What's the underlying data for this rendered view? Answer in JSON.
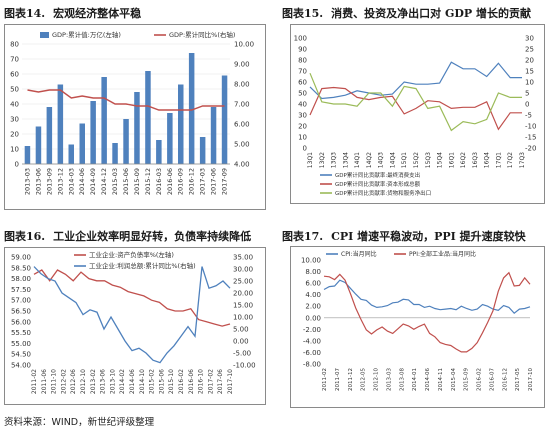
{
  "titles": [
    {
      "fig": "图表14.",
      "text": "宏观经济整体平稳"
    },
    {
      "fig": "图表15.",
      "text": "消费、投资及净出口对 GDP 增长的贡献"
    },
    {
      "fig": "图表16.",
      "text": "工业企业效率明显好转，负债率持续降低"
    },
    {
      "fig": "图表17.",
      "text": "CPI 增速平稳波动，PPI 提升速度较快"
    }
  ],
  "source": "资料来源：WIND，新世纪评级整理",
  "colors": {
    "bar": "#4f81bd",
    "red": "#c0504d",
    "blue": "#4f81bd",
    "olive": "#9bbb59",
    "frame": "#8a8a8a"
  },
  "chart_data": [
    {
      "type": "bar",
      "legend": [
        "GDP:累计值:万亿(左轴)",
        "GDP:累计同比%(右轴)"
      ],
      "x": [
        "2013-03",
        "2013-06",
        "2013-09",
        "2013-12",
        "2014-03",
        "2014-06",
        "2014-09",
        "2014-12",
        "2015-03",
        "2015-06",
        "2015-09",
        "2015-12",
        "2016-03",
        "2016-06",
        "2016-09",
        "2016-12",
        "2017-03",
        "2017-06",
        "2017-09"
      ],
      "x_ticks": [
        "2013-03",
        "2013-06",
        "2013-09",
        "2013-12",
        "2014-03",
        "2014-06",
        "2014-09",
        "2014-12",
        "2015-03",
        "2015-06",
        "2015-09",
        "2015-12",
        "2016-03",
        "2016-06",
        "2016-09",
        "2016-12",
        "2017-03",
        "2017-06",
        "2017-09"
      ],
      "series": [
        {
          "name": "GDP:累计值:万亿(左轴)",
          "type": "bar",
          "axis": "left",
          "values": [
            12,
            25,
            38,
            53,
            13,
            27,
            42,
            58,
            14,
            30,
            48,
            62,
            16,
            34,
            53,
            74,
            18,
            38,
            59
          ]
        },
        {
          "name": "GDP:累计同比%(右轴)",
          "type": "line",
          "axis": "right",
          "values": [
            7.7,
            7.6,
            7.7,
            7.7,
            7.3,
            7.4,
            7.3,
            7.3,
            7.0,
            7.0,
            6.9,
            6.9,
            6.7,
            6.7,
            6.7,
            6.7,
            6.9,
            6.9,
            6.9
          ]
        }
      ],
      "y_left": {
        "ticks": [
          "0",
          "10",
          "20",
          "30",
          "40",
          "50",
          "60",
          "70",
          "80"
        ],
        "lim": [
          0,
          80
        ]
      },
      "y_right": {
        "ticks": [
          "4.00",
          "5.00",
          "6.00",
          "7.00",
          "8.00",
          "9.00",
          "10.00"
        ],
        "lim": [
          4,
          10
        ]
      }
    },
    {
      "type": "line",
      "legend": [
        "GDP累计同比贡献率:最终消费支出",
        "GDP累计同比贡献率:资本形成总额",
        "GDP累计同比贡献率:货物和服务净出口"
      ],
      "x_ticks": [
        "13Q1",
        "13Q2",
        "13Q3",
        "13Q4",
        "14Q1",
        "14Q2",
        "14Q3",
        "14Q4",
        "15Q1",
        "15Q2",
        "15Q3",
        "15Q4",
        "16Q1",
        "16Q2",
        "16Q3",
        "16Q4",
        "17Q1",
        "17Q2",
        "17Q3"
      ],
      "x": [
        "13Q1",
        "13Q2",
        "13Q3",
        "13Q4",
        "14Q1",
        "14Q2",
        "14Q3",
        "14Q4",
        "15Q1",
        "15Q2",
        "15Q3",
        "15Q4",
        "16Q1",
        "16Q2",
        "16Q3",
        "16Q4",
        "17Q1",
        "17Q2",
        "17Q3"
      ],
      "series": [
        {
          "name": "GDP累计同比贡献率:最终消费支出",
          "axis": "left",
          "values": [
            55.5,
            45,
            46,
            48,
            52,
            50,
            48,
            49,
            60,
            58,
            58,
            59,
            78,
            72,
            72,
            65,
            77,
            64,
            64
          ]
        },
        {
          "name": "GDP累计同比贡献率:资本形成总额",
          "axis": "left",
          "values": [
            30,
            54,
            55,
            54,
            46,
            44,
            46,
            47,
            31,
            36,
            43,
            42,
            36,
            37,
            37,
            42,
            17,
            32,
            32
          ]
        },
        {
          "name": "GDP累计同比贡献率:货物和服务净出口",
          "axis": "right",
          "values": [
            14,
            1,
            0,
            0,
            -1,
            5,
            5,
            -1,
            8,
            7,
            -2,
            -1,
            -12,
            -8,
            -9,
            -7,
            5,
            3,
            3
          ]
        }
      ],
      "y_left": {
        "ticks": [
          "0",
          "10",
          "20",
          "30",
          "40",
          "50",
          "60",
          "70",
          "80",
          "90",
          "100"
        ],
        "lim": [
          0,
          100
        ]
      },
      "y_right": {
        "ticks": [
          "-20",
          "-15",
          "-10",
          "-5",
          "0",
          "5",
          "10",
          "15",
          "20",
          "25",
          "30"
        ],
        "lim": [
          -20,
          30
        ]
      }
    },
    {
      "type": "line",
      "legend": [
        "工业企业:资产负债率%(左轴)",
        "工业企业:利润总额:累计同比%(右轴)"
      ],
      "x_ticks": [
        "2011-02",
        "2011-06",
        "2011-10",
        "2012-02",
        "2012-06",
        "2012-10",
        "2013-02",
        "2013-06",
        "2013-10",
        "2014-02",
        "2014-06",
        "2014-10",
        "2015-02",
        "2015-06",
        "2015-10",
        "2016-02",
        "2016-06",
        "2016-10",
        "2017-02",
        "2017-06",
        "2017-10"
      ],
      "series": [
        {
          "name": "工业企业:资产负债率%(左轴)",
          "axis": "left",
          "values": [
            58.2,
            58.4,
            57.9,
            58.4,
            58.2,
            57.9,
            58.3,
            58.0,
            57.9,
            57.9,
            57.7,
            57.6,
            57.4,
            57.3,
            57.2,
            57.0,
            56.9,
            56.6,
            56.5,
            56.5,
            56.6,
            56.1,
            56.0,
            55.9,
            55.8,
            55.9
          ]
        },
        {
          "name": "工业企业:利润总额:累计同比%(右轴)",
          "axis": "right",
          "values": [
            31,
            28,
            26,
            25,
            20,
            18,
            16,
            11,
            13,
            12,
            5,
            10,
            5,
            0,
            -4,
            -3,
            -5,
            -8,
            -9,
            -5,
            -2,
            2,
            6,
            2,
            31,
            22,
            23,
            25,
            22
          ]
        }
      ],
      "y_left": {
        "ticks": [
          "54.00",
          "54.50",
          "55.00",
          "55.50",
          "56.00",
          "56.50",
          "57.00",
          "57.50",
          "58.00",
          "58.50",
          "59.00"
        ],
        "lim": [
          54,
          59
        ]
      },
      "y_right": {
        "ticks": [
          "-10.00",
          "-5.00",
          "0.00",
          "5.00",
          "10.00",
          "15.00",
          "20.00",
          "25.00",
          "30.00",
          "35.00"
        ],
        "lim": [
          -10,
          35
        ]
      }
    },
    {
      "type": "line",
      "legend": [
        "CPI:当月同比",
        "PPI:全部工业品:当月同比"
      ],
      "x_ticks": [
        "2011-02",
        "2011-07",
        "2011-12",
        "2012-05",
        "2012-10",
        "2013-03",
        "2013-08",
        "2014-01",
        "2014-06",
        "2014-11",
        "2015-04",
        "2015-09",
        "2016-02",
        "2016-07",
        "2016-12",
        "2017-05",
        "2017-10"
      ],
      "series": [
        {
          "name": "CPI:当月同比",
          "values": [
            4.9,
            5.4,
            5.5,
            6.5,
            6.1,
            5.1,
            4.1,
            3.2,
            3.0,
            2.2,
            1.8,
            1.9,
            2.1,
            2.6,
            2.7,
            3.2,
            3.1,
            2.3,
            2.3,
            1.8,
            2.0,
            1.6,
            1.4,
            1.5,
            1.6,
            1.4,
            2.0,
            1.6,
            1.3,
            1.5,
            2.3,
            2.0,
            1.5,
            1.3,
            2.1,
            1.8,
            0.8,
            1.5,
            1.6,
            1.9
          ]
        },
        {
          "name": "PPI:全部工业品:当月同比",
          "values": [
            7.2,
            7.1,
            6.6,
            7.5,
            6.5,
            4.2,
            1.7,
            -0.3,
            -2.1,
            -2.8,
            -2.1,
            -1.6,
            -2.3,
            -2.7,
            -1.9,
            -1.1,
            -1.4,
            -2.0,
            -1.5,
            -1.1,
            -2.7,
            -3.3,
            -4.3,
            -4.6,
            -4.8,
            -5.4,
            -5.9,
            -5.9,
            -5.3,
            -4.3,
            -2.6,
            -0.8,
            1.2,
            4.6,
            6.9,
            7.8,
            5.5,
            5.6,
            6.9,
            5.8
          ]
        }
      ],
      "y": {
        "ticks": [
          "-8.00",
          "-6.00",
          "-4.00",
          "-2.00",
          "0.00",
          "2.00",
          "4.00",
          "6.00",
          "8.00",
          "10.00"
        ],
        "lim": [
          -8,
          10
        ]
      }
    }
  ]
}
